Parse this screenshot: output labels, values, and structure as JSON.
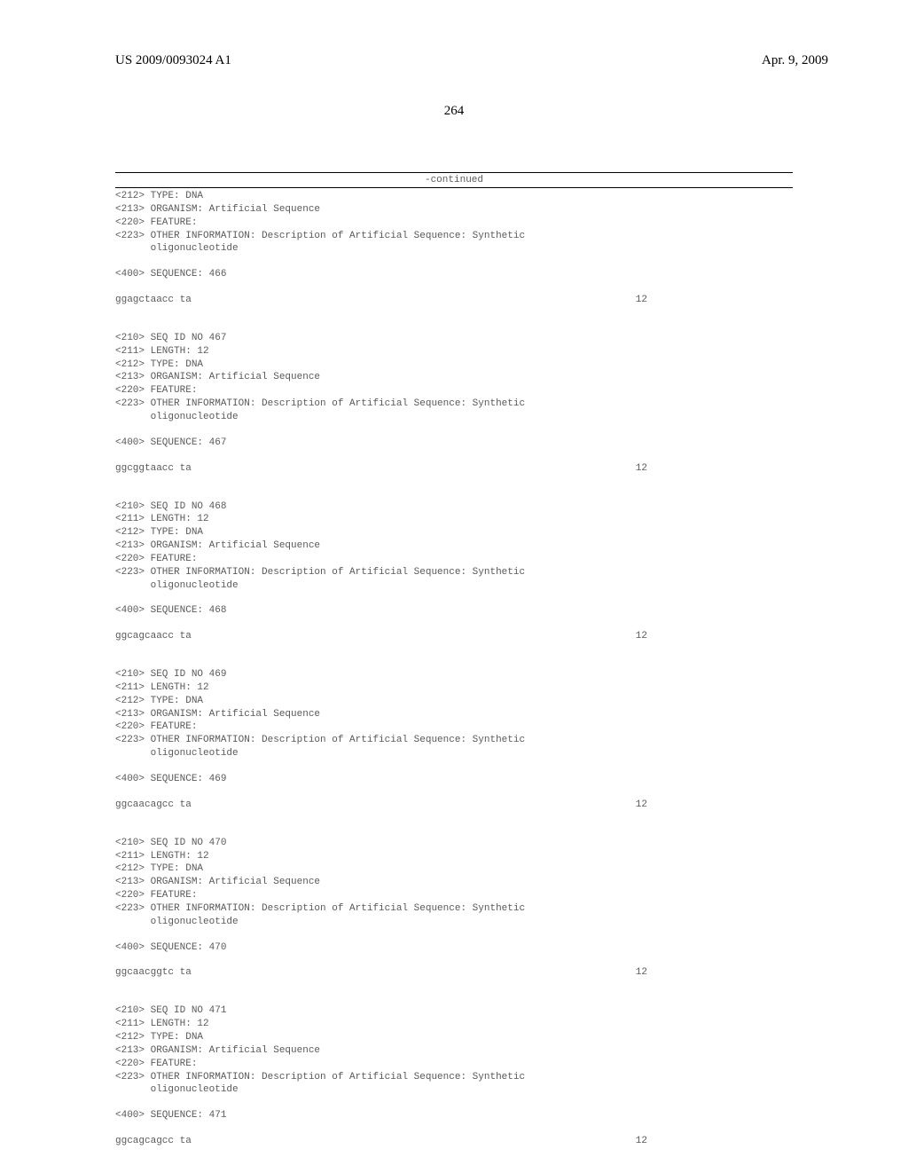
{
  "header": {
    "pub_number": "US 2009/0093024 A1",
    "pub_date": "Apr. 9, 2009"
  },
  "page_number": "264",
  "continued_label": "-continued",
  "blocks": [
    {
      "type": "meta",
      "lines": [
        "<212> TYPE: DNA",
        "<213> ORGANISM: Artificial Sequence",
        "<220> FEATURE:",
        "<223> OTHER INFORMATION: Description of Artificial Sequence: Synthetic",
        "      oligonucleotide"
      ]
    },
    {
      "type": "seq_header",
      "line": "<400> SEQUENCE: 466"
    },
    {
      "type": "sequence",
      "text": "ggagctaacc ta",
      "num": "12"
    },
    {
      "type": "meta",
      "lines": [
        "<210> SEQ ID NO 467",
        "<211> LENGTH: 12",
        "<212> TYPE: DNA",
        "<213> ORGANISM: Artificial Sequence",
        "<220> FEATURE:",
        "<223> OTHER INFORMATION: Description of Artificial Sequence: Synthetic",
        "      oligonucleotide"
      ]
    },
    {
      "type": "seq_header",
      "line": "<400> SEQUENCE: 467"
    },
    {
      "type": "sequence",
      "text": "ggcggtaacc ta",
      "num": "12"
    },
    {
      "type": "meta",
      "lines": [
        "<210> SEQ ID NO 468",
        "<211> LENGTH: 12",
        "<212> TYPE: DNA",
        "<213> ORGANISM: Artificial Sequence",
        "<220> FEATURE:",
        "<223> OTHER INFORMATION: Description of Artificial Sequence: Synthetic",
        "      oligonucleotide"
      ]
    },
    {
      "type": "seq_header",
      "line": "<400> SEQUENCE: 468"
    },
    {
      "type": "sequence",
      "text": "ggcagcaacc ta",
      "num": "12"
    },
    {
      "type": "meta",
      "lines": [
        "<210> SEQ ID NO 469",
        "<211> LENGTH: 12",
        "<212> TYPE: DNA",
        "<213> ORGANISM: Artificial Sequence",
        "<220> FEATURE:",
        "<223> OTHER INFORMATION: Description of Artificial Sequence: Synthetic",
        "      oligonucleotide"
      ]
    },
    {
      "type": "seq_header",
      "line": "<400> SEQUENCE: 469"
    },
    {
      "type": "sequence",
      "text": "ggcaacagcc ta",
      "num": "12"
    },
    {
      "type": "meta",
      "lines": [
        "<210> SEQ ID NO 470",
        "<211> LENGTH: 12",
        "<212> TYPE: DNA",
        "<213> ORGANISM: Artificial Sequence",
        "<220> FEATURE:",
        "<223> OTHER INFORMATION: Description of Artificial Sequence: Synthetic",
        "      oligonucleotide"
      ]
    },
    {
      "type": "seq_header",
      "line": "<400> SEQUENCE: 470"
    },
    {
      "type": "sequence",
      "text": "ggcaacggtc ta",
      "num": "12"
    },
    {
      "type": "meta",
      "lines": [
        "<210> SEQ ID NO 471",
        "<211> LENGTH: 12",
        "<212> TYPE: DNA",
        "<213> ORGANISM: Artificial Sequence",
        "<220> FEATURE:",
        "<223> OTHER INFORMATION: Description of Artificial Sequence: Synthetic",
        "      oligonucleotide"
      ]
    },
    {
      "type": "seq_header",
      "line": "<400> SEQUENCE: 471"
    },
    {
      "type": "sequence",
      "text": "ggcagcagcc ta",
      "num": "12"
    }
  ]
}
